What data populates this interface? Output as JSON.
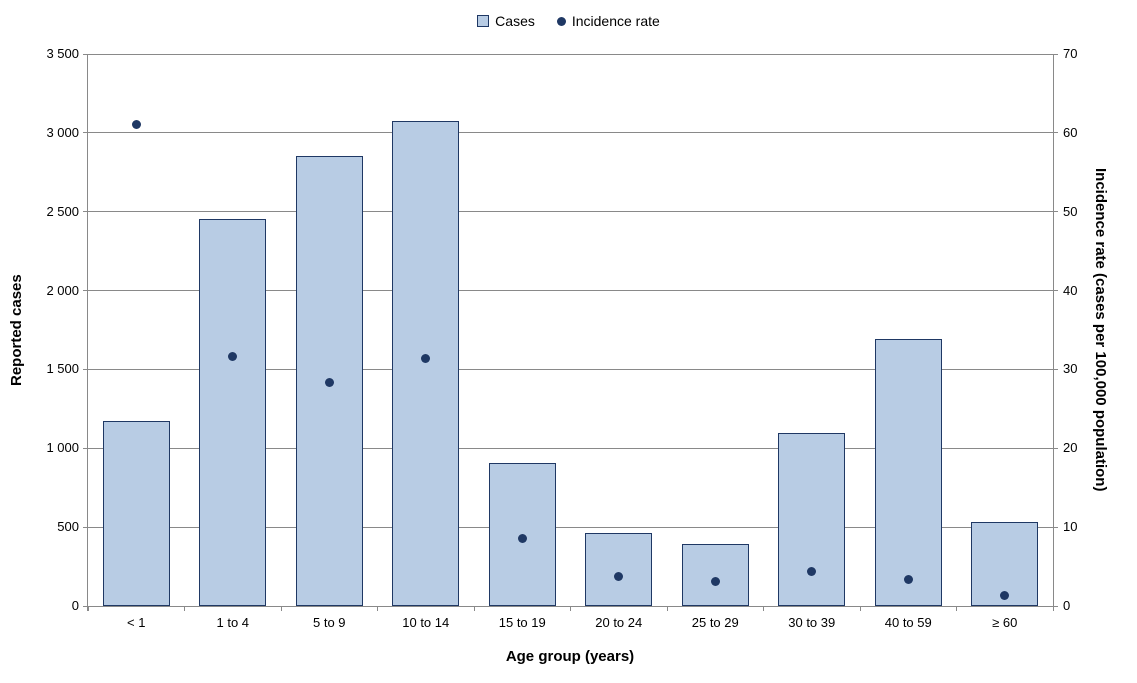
{
  "chart_data": {
    "type": "combo",
    "categories": [
      "< 1",
      "1 to 4",
      "5 to 9",
      "10 to 14",
      "15 to 19",
      "20 to 24",
      "25 to 29",
      "30 to 39",
      "40 to 59",
      "≥ 60"
    ],
    "series": [
      {
        "name": "Cases",
        "type": "bar",
        "axis": "left",
        "values": [
          1170,
          2455,
          2855,
          3075,
          905,
          460,
          395,
          1100,
          1690,
          530
        ]
      },
      {
        "name": "Incidence rate",
        "type": "scatter",
        "axis": "right",
        "values": [
          61,
          31.6,
          28.4,
          31.4,
          8.6,
          3.8,
          3.1,
          4.4,
          3.3,
          1.3
        ]
      }
    ],
    "left_axis": {
      "label": "Reported cases",
      "min": 0,
      "max": 3500,
      "step": 500,
      "tick_labels": [
        "0",
        "500",
        "1 000",
        "1 500",
        "2 000",
        "2 500",
        "3 000",
        "3 500"
      ]
    },
    "right_axis": {
      "label": "Incidence rate (cases per 100,000 population)",
      "min": 0,
      "max": 70,
      "step": 10,
      "tick_labels": [
        "0",
        "10",
        "20",
        "30",
        "40",
        "50",
        "60",
        "70"
      ]
    },
    "xlabel": "Age group (years)",
    "legend": {
      "position": "top",
      "entries": [
        "Cases",
        "Incidence rate"
      ]
    },
    "grid": true,
    "colors": {
      "bar_fill": "#b8cce4",
      "bar_border": "#1f3864",
      "dot": "#1f3864",
      "grid": "#898989",
      "axis": "#898989",
      "text": "#000000"
    }
  }
}
